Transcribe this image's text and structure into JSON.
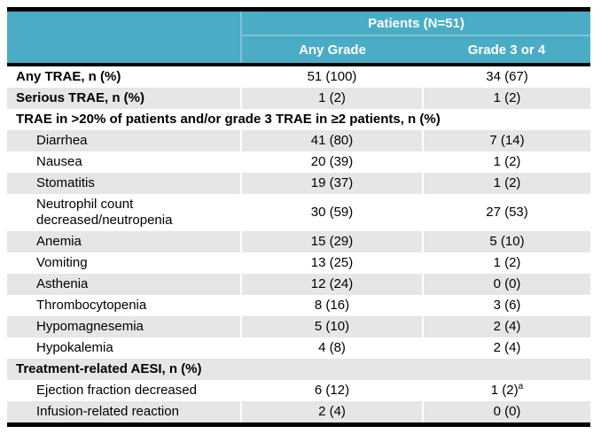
{
  "colors": {
    "header_bg": "#4BACC6",
    "header_text": "#FFFFFF",
    "header_divider": "#7EC4D6",
    "row_stripe": "#E6E6E6",
    "table_border": "#000000"
  },
  "table": {
    "group_header": "Patients (N=51)",
    "columns": [
      "Any Grade",
      "Grade 3 or 4"
    ],
    "rows": [
      {
        "label": "Any TRAE, n (%)",
        "style": "bold",
        "any_grade": "51 (100)",
        "grade_3_or_4": "34 (67)"
      },
      {
        "label": "Serious TRAE, n (%)",
        "style": "bold",
        "any_grade": "1 (2)",
        "grade_3_or_4": "1 (2)"
      },
      {
        "label": "TRAE in >20% of patients and/or grade 3 TRAE in ≥2 patients, n (%)",
        "style": "section"
      },
      {
        "label": "Diarrhea",
        "style": "indent",
        "any_grade": "41 (80)",
        "grade_3_or_4": "7 (14)"
      },
      {
        "label": "Nausea",
        "style": "indent",
        "any_grade": "20 (39)",
        "grade_3_or_4": "1 (2)"
      },
      {
        "label": "Stomatitis",
        "style": "indent",
        "any_grade": "19 (37)",
        "grade_3_or_4": "1 (2)"
      },
      {
        "label": "Neutrophil count decreased/neutropenia",
        "style": "indent",
        "any_grade": "30 (59)",
        "grade_3_or_4": "27 (53)"
      },
      {
        "label": "Anemia",
        "style": "indent",
        "any_grade": "15 (29)",
        "grade_3_or_4": "5 (10)"
      },
      {
        "label": "Vomiting",
        "style": "indent",
        "any_grade": "13 (25)",
        "grade_3_or_4": "1 (2)"
      },
      {
        "label": "Asthenia",
        "style": "indent",
        "any_grade": "12 (24)",
        "grade_3_or_4": "0 (0)"
      },
      {
        "label": "Thrombocytopenia",
        "style": "indent",
        "any_grade": "8 (16)",
        "grade_3_or_4": "3 (6)"
      },
      {
        "label": "Hypomagnesemia",
        "style": "indent",
        "any_grade": "5 (10)",
        "grade_3_or_4": "2 (4)"
      },
      {
        "label": "Hypokalemia",
        "style": "indent",
        "any_grade": "4 (8)",
        "grade_3_or_4": "2 (4)"
      },
      {
        "label": "Treatment-related AESI, n (%)",
        "style": "section"
      },
      {
        "label": "Ejection fraction decreased",
        "style": "indent",
        "any_grade": "6 (12)",
        "grade_3_or_4": "1 (2)",
        "grade_3_or_4_footnote": "a"
      },
      {
        "label": "Infusion-related reaction",
        "style": "indent",
        "any_grade": "2 (4)",
        "grade_3_or_4": "0 (0)"
      }
    ]
  }
}
